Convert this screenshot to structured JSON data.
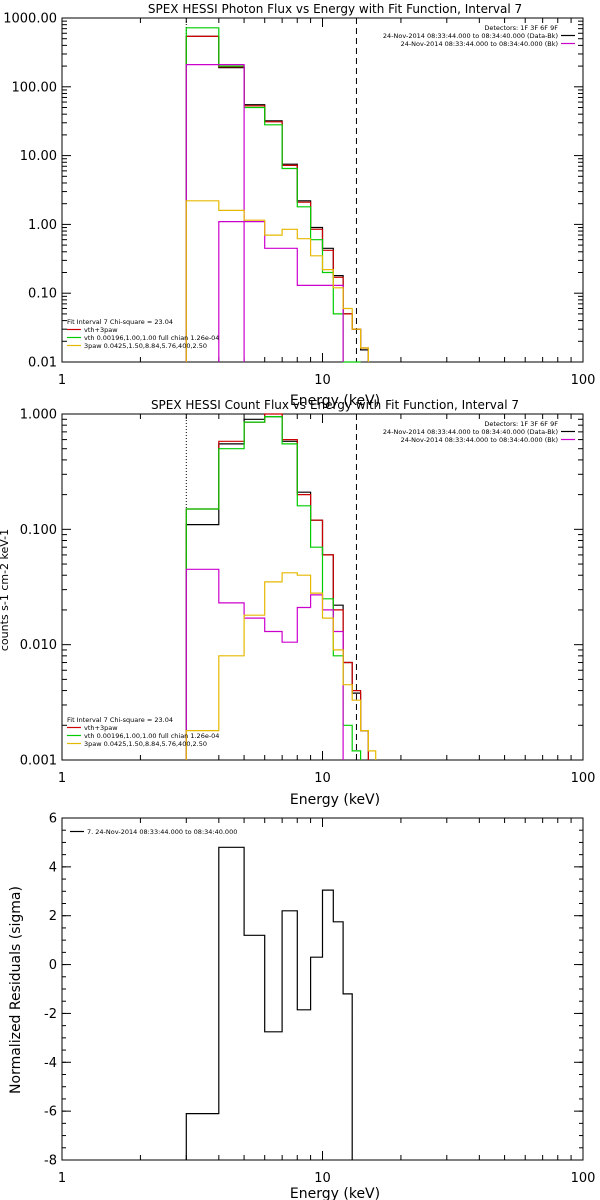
{
  "colors": {
    "data": "#000000",
    "bk": "#cc0000",
    "sum": "#000000",
    "vth": "#00cc00",
    "bk_data": "#cc00cc",
    "spaw": "#e6b800"
  },
  "chart_data": [
    {
      "type": "line",
      "title": "SPEX HESSI Photon Flux vs Energy with Fit Function, Interval 7",
      "xlabel": "Energy (keV)",
      "ylabel": "",
      "xscale": "log",
      "yscale": "log",
      "xlim": [
        1,
        100
      ],
      "ylim": [
        0.01,
        1000
      ],
      "xticks": [
        {
          "v": 1,
          "label": "1"
        },
        {
          "v": 10,
          "label": "10"
        },
        {
          "v": 100,
          "label": "100"
        }
      ],
      "yticks": [
        {
          "v": 1000,
          "label": "1000.00"
        },
        {
          "v": 100,
          "label": "100.00"
        },
        {
          "v": 10,
          "label": "10.00"
        },
        {
          "v": 1,
          "label": "1.00"
        },
        {
          "v": 0.1,
          "label": "0.10"
        },
        {
          "v": 0.01,
          "label": "0.01"
        }
      ],
      "vlines": [
        {
          "x": 3.0,
          "style": "dotted"
        },
        {
          "x": 13.5,
          "style": "dashed"
        }
      ],
      "edges": [
        3.0,
        4.0,
        5.0,
        6.0,
        7.0,
        8.0,
        9.0,
        10.0,
        11.0,
        12.0,
        13.0,
        14.0,
        15.0,
        16.0,
        17.0,
        18.0
      ],
      "series": [
        {
          "color_key": "data",
          "values": [
            540,
            190,
            55,
            32,
            7.5,
            2.2,
            0.9,
            0.45,
            0.18,
            0.05,
            0.03,
            0.015,
            null,
            null,
            null
          ]
        },
        {
          "color_key": "bk",
          "values": [
            540,
            195,
            53,
            31,
            7.2,
            2.1,
            0.85,
            0.42,
            0.17,
            0.05,
            0.03,
            0.016,
            null,
            null,
            null
          ]
        },
        {
          "color_key": "vth",
          "values": [
            720,
            200,
            50,
            28,
            6.5,
            1.8,
            0.6,
            0.2,
            0.05,
            0.01,
            0.01,
            null,
            null,
            null,
            null
          ]
        },
        {
          "color_key": "bk_data",
          "values": [
            210,
            210,
            null,
            null,
            null,
            null,
            null,
            null,
            null,
            null,
            null,
            null,
            null,
            null,
            null
          ]
        },
        {
          "color_key": "bk_data",
          "values": [
            null,
            1.1,
            1.1,
            0.45,
            0.45,
            0.13,
            0.13,
            0.13,
            0.13,
            null,
            null,
            null,
            null,
            null,
            null
          ]
        },
        {
          "color_key": "spaw",
          "values": [
            2.2,
            1.6,
            1.15,
            0.7,
            0.85,
            0.62,
            0.35,
            0.22,
            0.12,
            0.06,
            0.03,
            0.016,
            null,
            null,
            null
          ]
        }
      ],
      "legend_right": {
        "lines": [
          "Detectors: 1F 3F 6F 9F",
          "24-Nov-2014 08:33:44.000 to 08:34:40.000 (Data-Bk)",
          "24-Nov-2014 08:33:44.000 to 08:34:40.000 (Bk)"
        ],
        "colors": [
          "none",
          "data",
          "bk_data"
        ]
      },
      "legend_left": {
        "lines": [
          "Fit Interval 7   Chi-square = 23.04",
          "vth+3paw",
          "vth 0.00196,1.00,1.00  full chian 1.26e-04",
          "3paw 0.0425,1.50,8.84,5.76,400,2.50"
        ],
        "colors": [
          "none",
          "bk",
          "vth",
          "spaw"
        ]
      }
    },
    {
      "type": "line",
      "title": "SPEX HESSI Count Flux vs Energy with Fit Function, Interval 7",
      "xlabel": "Energy (keV)",
      "ylabel": "counts s-1 cm-2 keV-1",
      "xscale": "log",
      "yscale": "log",
      "xlim": [
        1,
        100
      ],
      "ylim": [
        0.001,
        1
      ],
      "xticks": [
        {
          "v": 1,
          "label": "1"
        },
        {
          "v": 10,
          "label": "10"
        },
        {
          "v": 100,
          "label": "100"
        }
      ],
      "yticks": [
        {
          "v": 1,
          "label": "1.000"
        },
        {
          "v": 0.1,
          "label": "0.100"
        },
        {
          "v": 0.01,
          "label": "0.010"
        },
        {
          "v": 0.001,
          "label": "0.001"
        }
      ],
      "vlines": [
        {
          "x": 3.0,
          "style": "dotted"
        },
        {
          "x": 13.5,
          "style": "dashed"
        }
      ],
      "edges": [
        3.0,
        4.0,
        5.0,
        6.0,
        7.0,
        8.0,
        9.0,
        10.0,
        11.0,
        12.0,
        13.0,
        14.0,
        15.0,
        16.0,
        17.0,
        18.0
      ],
      "series": [
        {
          "color_key": "data",
          "values": [
            0.11,
            0.55,
            0.9,
            0.95,
            0.58,
            0.21,
            0.12,
            0.06,
            0.022,
            0.007,
            0.0038,
            0.0018,
            null,
            null,
            null
          ]
        },
        {
          "color_key": "bk",
          "values": [
            0.15,
            0.58,
            0.85,
            1.0,
            0.6,
            0.2,
            0.12,
            0.06,
            0.02,
            0.007,
            0.004,
            0.0018,
            null,
            null,
            null
          ]
        },
        {
          "color_key": "vth",
          "values": [
            0.15,
            0.5,
            0.85,
            0.95,
            0.55,
            0.16,
            0.07,
            0.025,
            0.008,
            0.002,
            0.0012,
            null,
            null,
            null,
            null
          ]
        },
        {
          "color_key": "bk_data",
          "values": [
            0.045,
            0.023,
            0.017,
            0.013,
            0.0105,
            0.021,
            0.027,
            0.02,
            0.013,
            null,
            null,
            null,
            null,
            null,
            null
          ]
        },
        {
          "color_key": "spaw",
          "values": [
            0.0018,
            0.008,
            0.018,
            0.035,
            0.042,
            0.04,
            0.028,
            0.017,
            0.009,
            0.0045,
            0.0033,
            0.0018,
            0.0012,
            null,
            null
          ]
        }
      ],
      "legend_right": {
        "lines": [
          "Detectors: 1F 3F 6F 9F",
          "24-Nov-2014 08:33:44.000 to 08:34:40.000 (Data-Bk)",
          "24-Nov-2014 08:33:44.000 to 08:34:40.000 (Bk)"
        ],
        "colors": [
          "none",
          "data",
          "bk_data"
        ]
      },
      "legend_left": {
        "lines": [
          "Fit Interval 7   Chi-square = 23.04",
          "vth+3paw",
          "vth 0.00196,1.00,1.00  full chian 1.26e-04",
          "3paw 0.0425,1.50,8.84,5.76,400,2.50"
        ],
        "colors": [
          "none",
          "bk",
          "vth",
          "spaw"
        ]
      }
    },
    {
      "type": "line",
      "title": "",
      "xlabel": "Energy (keV)",
      "ylabel": "Normalized Residuals (sigma)",
      "xscale": "log",
      "yscale": "linear",
      "xlim": [
        1,
        100
      ],
      "ylim": [
        -8,
        6
      ],
      "xticks": [
        {
          "v": 1,
          "label": "1"
        },
        {
          "v": 10,
          "label": "10"
        },
        {
          "v": 100,
          "label": "100"
        }
      ],
      "yticks": [
        {
          "v": 6,
          "label": "6"
        },
        {
          "v": 4,
          "label": "4"
        },
        {
          "v": 2,
          "label": "2"
        },
        {
          "v": 0,
          "label": "0"
        },
        {
          "v": -2,
          "label": "-2"
        },
        {
          "v": -4,
          "label": "-4"
        },
        {
          "v": -6,
          "label": "-6"
        },
        {
          "v": -8,
          "label": "-8"
        }
      ],
      "vlines": [],
      "edges": [
        3.0,
        4.0,
        5.0,
        6.0,
        7.0,
        8.0,
        9.0,
        10.0,
        11.0,
        12.0,
        13.0
      ],
      "series": [
        {
          "color_key": "data",
          "values": [
            -6.1,
            4.8,
            1.2,
            -2.75,
            2.2,
            -1.85,
            0.3,
            3.05,
            1.75,
            -1.2
          ]
        }
      ],
      "legend_right": {
        "lines": [],
        "colors": []
      },
      "legend_left": {
        "lines": [
          "7. 24-Nov-2014 08:33:44.000 to 08:34:40.000"
        ],
        "colors": [
          "data"
        ]
      }
    }
  ]
}
